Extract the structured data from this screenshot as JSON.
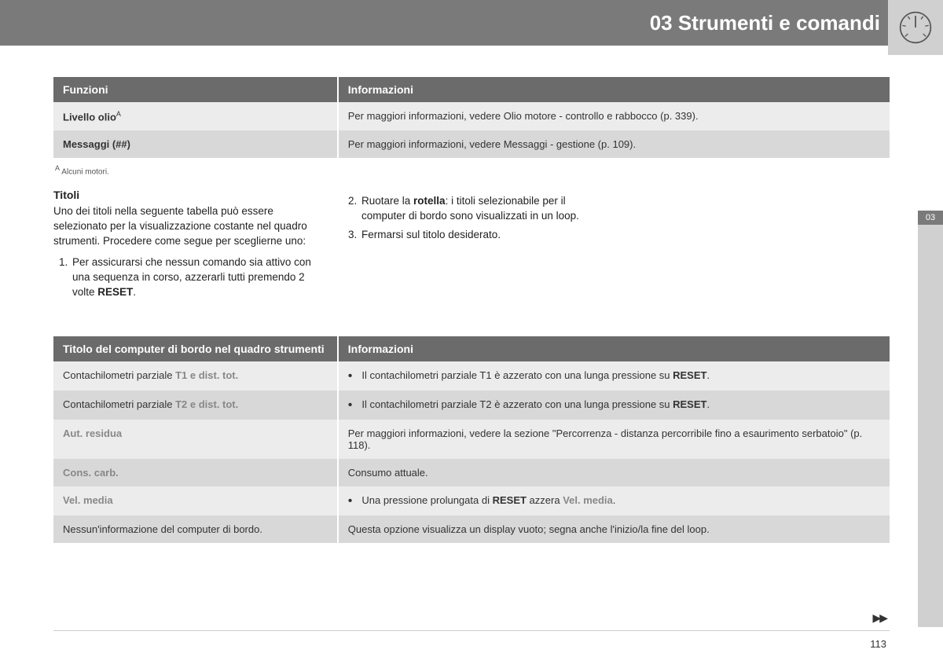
{
  "header": {
    "chapter_title": "03 Strumenti e comandi",
    "side_tab": "03"
  },
  "table1": {
    "headers": [
      "Funzioni",
      "Informazioni"
    ],
    "rows": [
      {
        "label_html": "Livello olio",
        "sup": "A",
        "info": "Per maggiori informazioni, vedere Olio motore - controllo e rabbocco (p. 339).",
        "bg": "row-light"
      },
      {
        "label_html": "Messaggi (##)",
        "sup": "",
        "info": "Per maggiori informazioni, vedere Messaggi - gestione (p. 109).",
        "bg": "row-alt"
      }
    ],
    "footnote_label": "A",
    "footnote_text": "Alcuni motori."
  },
  "section": {
    "heading": "Titoli",
    "intro": "Uno dei titoli nella seguente tabella può essere selezionato per la visualizzazione costante nel quadro strumenti. Procedere come segue per sceglierne uno:",
    "step1_pre": "Per assicurarsi che nessun comando sia attivo con una sequenza in corso, azzerarli tutti premendo 2 volte ",
    "step1_bold": "RESET",
    "step1_post": ".",
    "step2_pre": "Ruotare la ",
    "step2_bold": "rotella",
    "step2_post": ": i titoli selezionabile per il computer di bordo sono visualizzati in un loop.",
    "step3": "Fermarsi sul titolo desiderato."
  },
  "table2": {
    "headers": [
      "Titolo del computer di bordo nel quadro strumenti",
      "Informazioni"
    ],
    "rows": [
      {
        "left_prefix": "Contachilometri parziale ",
        "left_grey": "T1 e dist. tot.",
        "bullet": true,
        "right_pre": "Il contachilometri parziale T1 è azzerato con una lunga pressione su ",
        "right_bold": "RESET",
        "right_post": ".",
        "bg": "row-light"
      },
      {
        "left_prefix": "Contachilometri parziale ",
        "left_grey": "T2 e dist. tot.",
        "bullet": true,
        "right_pre": "Il contachilometri parziale T2 è azzerato con una lunga pressione su ",
        "right_bold": "RESET",
        "right_post": ".",
        "bg": "row-alt"
      },
      {
        "left_prefix": "",
        "left_grey": "Aut. residua",
        "bullet": false,
        "right_plain": "Per maggiori informazioni, vedere la sezione \"Percorrenza - distanza percorribile fino a esaurimento serbatoio\" (p. 118).",
        "bg": "row-light"
      },
      {
        "left_prefix": "",
        "left_grey": "Cons. carb.",
        "bullet": false,
        "right_plain": "Consumo attuale.",
        "bg": "row-alt"
      },
      {
        "left_prefix": "",
        "left_grey": "Vel. media",
        "bullet": true,
        "right_pre": "Una pressione prolungata di ",
        "right_bold": "RESET",
        "right_mid": " azzera ",
        "right_grey": "Vel. media",
        "right_post": ".",
        "bg": "row-light"
      },
      {
        "left_plain": "Nessun'informazione del computer di bordo.",
        "bullet": false,
        "right_plain": "Questa opzione visualizza un display vuoto; segna anche l'inizio/la fine del loop.",
        "bg": "row-alt"
      }
    ]
  },
  "footer": {
    "page_number": "113",
    "continue": "▶▶"
  }
}
